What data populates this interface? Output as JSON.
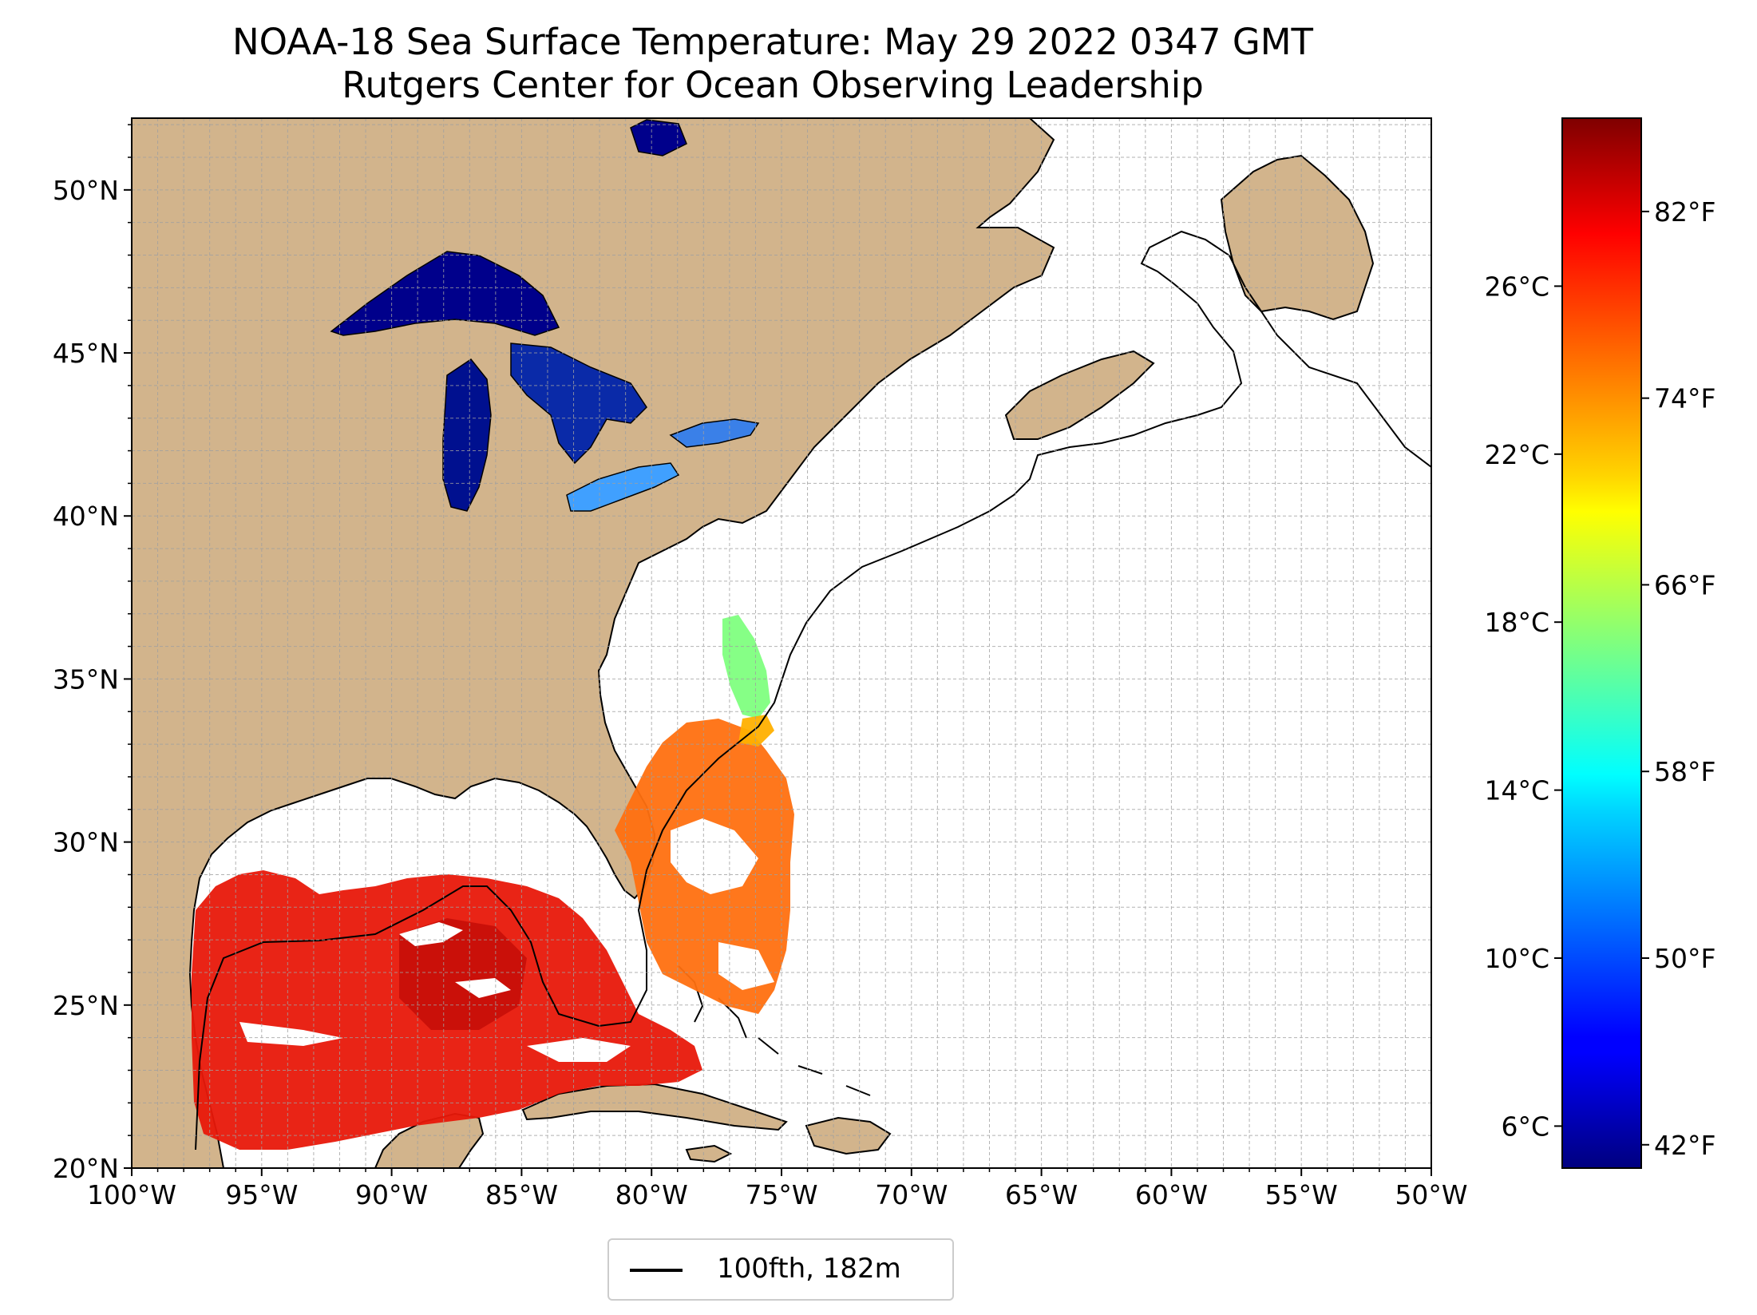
{
  "title": "NOAA-18 Sea Surface Temperature: May 29 2022 0347 GMT",
  "subtitle": "Rutgers Center for Ocean Observing Leadership",
  "map": {
    "lon_range": [
      -100,
      -50
    ],
    "lat_range": [
      20,
      52.2
    ],
    "lon_ticks": [
      {
        "value": -100,
        "label": "100°W"
      },
      {
        "value": -95,
        "label": "95°W"
      },
      {
        "value": -90,
        "label": "90°W"
      },
      {
        "value": -85,
        "label": "85°W"
      },
      {
        "value": -80,
        "label": "80°W"
      },
      {
        "value": -75,
        "label": "75°W"
      },
      {
        "value": -70,
        "label": "70°W"
      },
      {
        "value": -65,
        "label": "65°W"
      },
      {
        "value": -60,
        "label": "60°W"
      },
      {
        "value": -55,
        "label": "55°W"
      },
      {
        "value": -50,
        "label": "50°W"
      }
    ],
    "lat_ticks": [
      {
        "value": 20,
        "label": "20°N"
      },
      {
        "value": 25,
        "label": "25°N"
      },
      {
        "value": 30,
        "label": "30°N"
      },
      {
        "value": 35,
        "label": "35°N"
      },
      {
        "value": 40,
        "label": "40°N"
      },
      {
        "value": 45,
        "label": "45°N"
      },
      {
        "value": 50,
        "label": "50°N"
      }
    ],
    "gridlines": true,
    "land_color": "#d2b48c",
    "ocean_color": "#ffffff"
  },
  "colorbar": {
    "colormap": "jet",
    "range_c": [
      5,
      30
    ],
    "celsius_ticks": [
      {
        "value": 6,
        "label": "6°C"
      },
      {
        "value": 10,
        "label": "10°C"
      },
      {
        "value": 14,
        "label": "14°C"
      },
      {
        "value": 18,
        "label": "18°C"
      },
      {
        "value": 22,
        "label": "22°C"
      },
      {
        "value": 26,
        "label": "26°C"
      }
    ],
    "fahrenheit_ticks": [
      {
        "value": 42,
        "label": "42°F"
      },
      {
        "value": 50,
        "label": "50°F"
      },
      {
        "value": 58,
        "label": "58°F"
      },
      {
        "value": 66,
        "label": "66°F"
      },
      {
        "value": 74,
        "label": "74°F"
      },
      {
        "value": 82,
        "label": "82°F"
      }
    ]
  },
  "legend": {
    "label": "100fth, 182m",
    "line_color": "#000000",
    "placement": "bottom-center"
  }
}
